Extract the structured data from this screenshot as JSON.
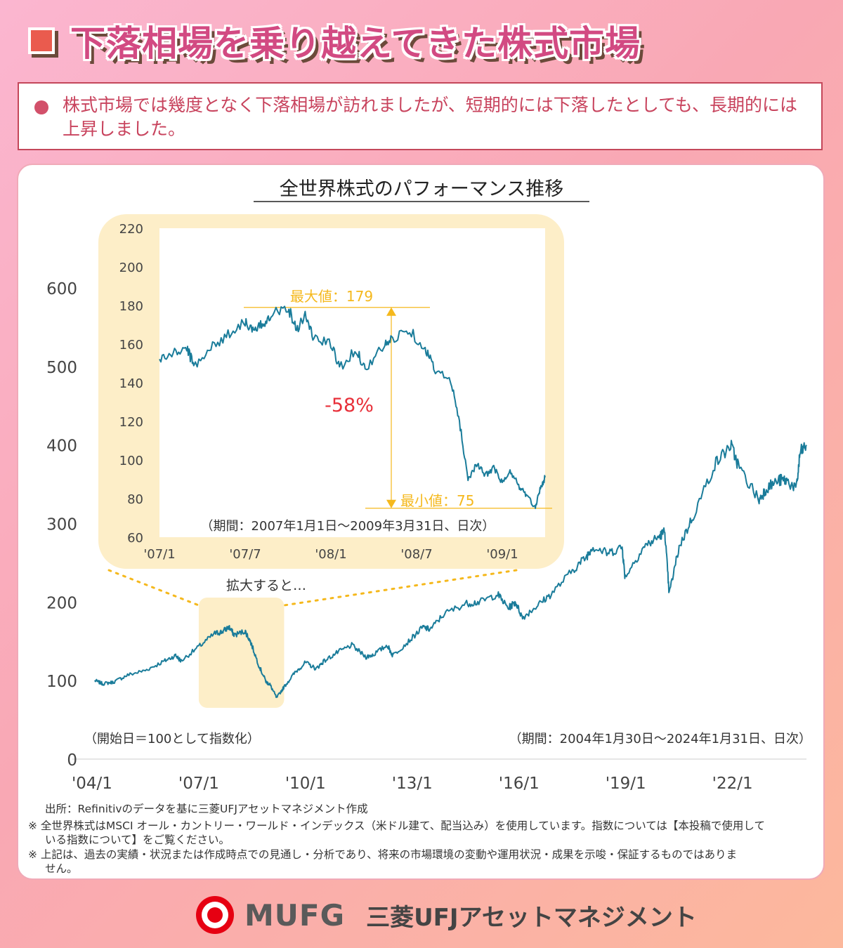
{
  "header": {
    "title": "下落相場を乗り越えてきた株式市場"
  },
  "note": {
    "text": "株式市場では幾度となく下落相場が訪れましたが、短期的には下落したとしても、長期的には上昇しました。"
  },
  "colors": {
    "line": "#1a7c9a",
    "inset_bg": "#fdeec8",
    "annotation": "#f5b81c",
    "drop_label": "#e8303a",
    "title_pink": "#d24a82",
    "logo_red": "#e60012"
  },
  "chart_data": [
    {
      "type": "line",
      "title": "全世界株式のパフォーマンス推移",
      "x_tick_labels": [
        "'04/1",
        "'07/1",
        "'10/1",
        "'13/1",
        "'16/1",
        "'19/1",
        "'22/1"
      ],
      "x_tick_years": [
        2004,
        2007,
        2010,
        2013,
        2016,
        2019,
        2022
      ],
      "y_tick_labels": [
        "0",
        "100",
        "200",
        "300",
        "400",
        "500",
        "600"
      ],
      "ylim": [
        0,
        600
      ],
      "xlim": [
        2004.08,
        2024.08
      ],
      "note_left": "（開始日＝100として指数化）",
      "period": "（期間：2004年1月30日～2024年1月31日、日次）",
      "highlight_label": "拡大すると…",
      "highlight_x": [
        2007.0,
        2009.4
      ],
      "series": [
        {
          "x": [
            2004.08,
            2004.3,
            2004.6,
            2005.0,
            2005.5,
            2006.0,
            2006.35,
            2006.5,
            2007.0,
            2007.45,
            2007.65,
            2007.85,
            2008.0,
            2008.3,
            2008.45,
            2008.7,
            2008.9,
            2009.0,
            2009.19,
            2009.4,
            2009.7,
            2010.0,
            2010.3,
            2010.5,
            2010.9,
            2011.3,
            2011.7,
            2011.9,
            2012.3,
            2012.45,
            2012.9,
            2013.3,
            2013.5,
            2013.9,
            2014.5,
            2014.9,
            2015.4,
            2015.7,
            2015.9,
            2016.1,
            2016.5,
            2016.9,
            2017.5,
            2017.9,
            2018.05,
            2018.5,
            2018.9,
            2018.98,
            2019.5,
            2019.9,
            2020.1,
            2020.22,
            2020.5,
            2020.9,
            2021.5,
            2021.95,
            2022.2,
            2022.75,
            2022.95,
            2023.3,
            2023.5,
            2023.8,
            2023.9,
            2024.08
          ],
          "y": [
            100,
            96,
            98,
            107,
            113,
            124,
            132,
            125,
            143,
            160,
            162,
            168,
            158,
            163,
            150,
            118,
            98,
            95,
            78,
            92,
            110,
            123,
            115,
            124,
            136,
            145,
            130,
            133,
            145,
            132,
            150,
            168,
            165,
            185,
            198,
            200,
            210,
            192,
            200,
            180,
            195,
            210,
            240,
            258,
            270,
            262,
            270,
            232,
            270,
            282,
            290,
            210,
            270,
            310,
            375,
            400,
            370,
            330,
            345,
            355,
            355,
            345,
            390,
            400
          ]
        }
      ]
    },
    {
      "type": "line",
      "title": "",
      "x_tick_labels": [
        "'07/1",
        "'07/7",
        "'08/1",
        "'08/7",
        "'09/1"
      ],
      "x_tick_years": [
        2007.0,
        2007.5,
        2008.0,
        2008.5,
        2009.0
      ],
      "y_tick_labels": [
        "60",
        "80",
        "100",
        "120",
        "140",
        "160",
        "180",
        "200",
        "220"
      ],
      "ylim": [
        60,
        220
      ],
      "xlim": [
        2007.0,
        2009.25
      ],
      "period": "（期間：2007年1月1日～2009年3月31日、日次）",
      "max_label": "最大値：179",
      "min_label": "最小値：75",
      "max_value": 179,
      "min_value": 75,
      "drop_label": "-58%",
      "series": [
        {
          "x": [
            2007.0,
            2007.08,
            2007.16,
            2007.2,
            2007.3,
            2007.4,
            2007.5,
            2007.55,
            2007.6,
            2007.65,
            2007.75,
            2007.8,
            2007.85,
            2007.9,
            2008.0,
            2008.05,
            2008.15,
            2008.2,
            2008.3,
            2008.35,
            2008.45,
            2008.55,
            2008.6,
            2008.7,
            2008.75,
            2008.8,
            2008.85,
            2008.9,
            2008.95,
            2009.0,
            2009.05,
            2009.1,
            2009.14,
            2009.19,
            2009.22,
            2009.25
          ],
          "y": [
            152,
            155,
            158,
            149,
            158,
            165,
            172,
            166,
            170,
            176,
            179,
            168,
            175,
            163,
            160,
            148,
            157,
            147,
            158,
            162,
            168,
            158,
            148,
            140,
            120,
            90,
            98,
            92,
            96,
            88,
            94,
            86,
            82,
            75,
            85,
            91
          ]
        }
      ]
    }
  ],
  "footnotes": {
    "source": "出所：Refinitivのデータを基に三菱UFJアセットマネジメント作成",
    "note1_line1": "※ 全世界株式はMSCI オール・カントリー・ワールド・インデックス（米ドル建て、配当込み）を使用しています。指数については【本投稿で使用して",
    "note1_line2": "いる指数について】をご覧ください。",
    "note2_line1": "※ 上記は、過去の実績・状況または作成時点での見通し・分析であり、将来の市場環境の変動や運用状況・成果を示唆・保証するものではありま",
    "note2_line2": "せん。"
  },
  "footer": {
    "logo_text": "MUFG",
    "company": "三菱UFJアセットマネジメント"
  }
}
